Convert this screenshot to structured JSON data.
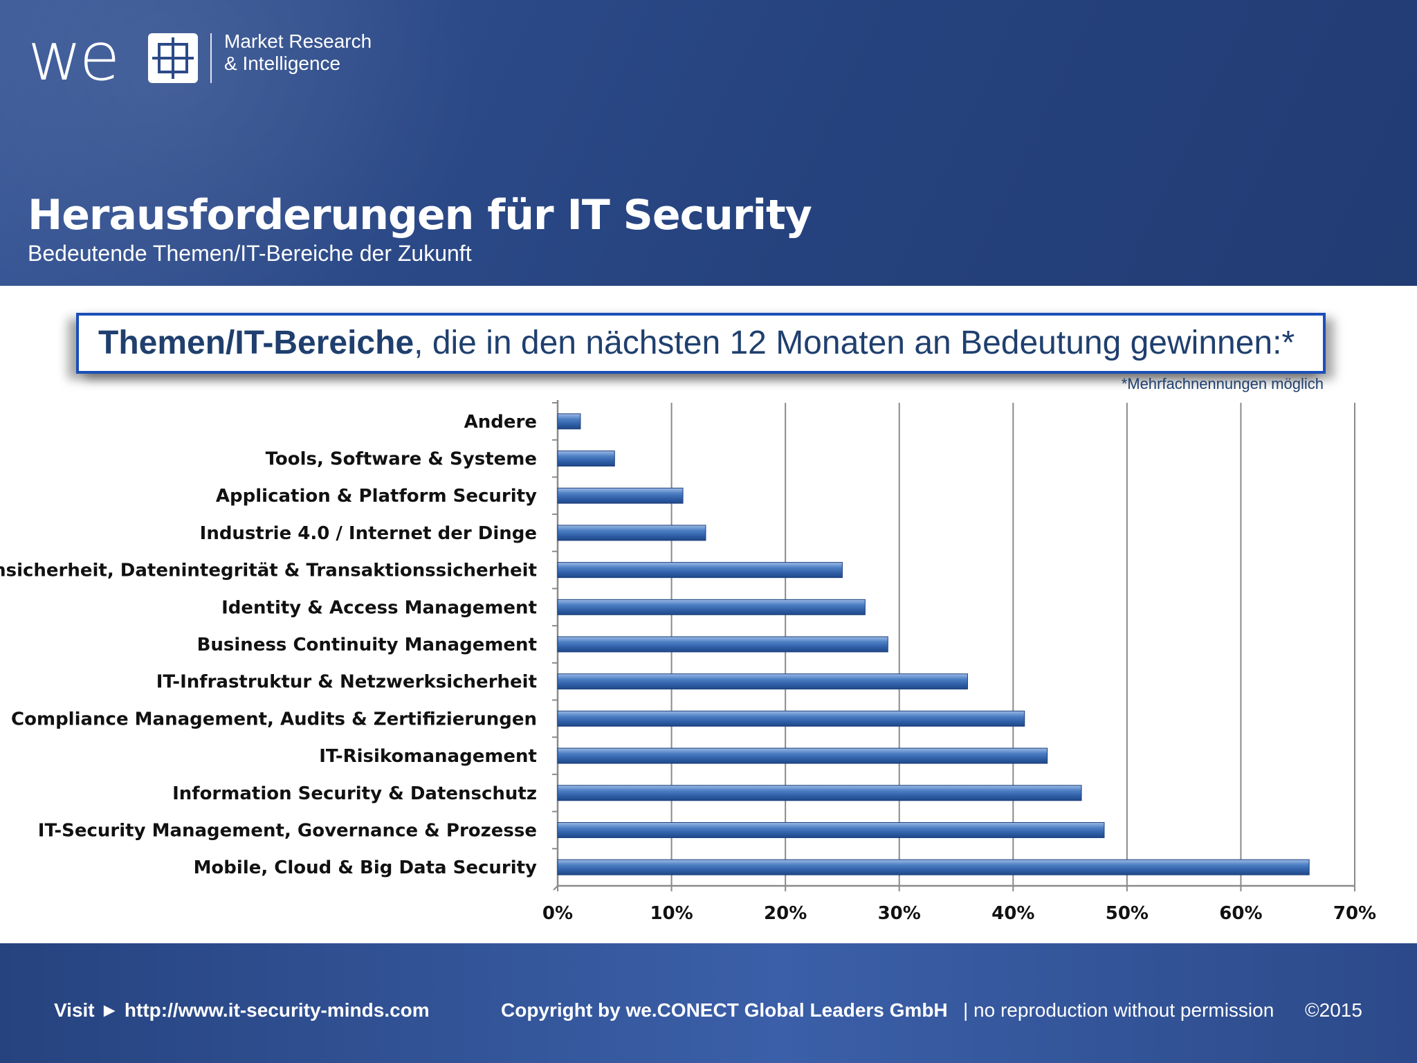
{
  "header": {
    "logo_word": "we",
    "logo_line1": "Market Research",
    "logo_line2": "& Intelligence",
    "title": "Herausforderungen für IT Security",
    "subtitle": "Bedeutende Themen/IT-Bereiche der Zukunft"
  },
  "question": {
    "bold": "Themen/IT-Bereiche",
    "rest": ", die in den nächsten 12 Monaten an Bedeutung gewinnen:*",
    "footnote": "*Mehrfachnennungen möglich"
  },
  "chart_data": {
    "type": "bar",
    "orientation": "horizontal",
    "categories": [
      "Andere",
      "Tools, Software & Systeme",
      "Application & Platform Security",
      "Industrie 4.0 / Internet der Dinge",
      "Datensicherheit, Datenintegrität & Transaktionssicherheit",
      "Identity & Access Management",
      "Business Continuity Management",
      "IT-Infrastruktur & Netzwerksicherheit",
      "Compliance Management, Audits & Zertifizierungen",
      "IT-Risikomanagement",
      "Information Security & Datenschutz",
      "IT-Security Management, Governance & Prozesse",
      "Mobile, Cloud & Big Data Security"
    ],
    "values": [
      2,
      5,
      11,
      13,
      25,
      27,
      29,
      36,
      41,
      43,
      46,
      48,
      66
    ],
    "xlim": [
      0,
      70
    ],
    "xticks": [
      "0%",
      "10%",
      "20%",
      "30%",
      "40%",
      "50%",
      "60%",
      "70%"
    ],
    "grid": "vertical",
    "bar_color": "#3a6fb8"
  },
  "footer": {
    "visit": "Visit ► http://www.it-security-minds.com",
    "copyright": "Copyright by we.CONECT Global Leaders GmbH",
    "norepro": "| no reproduction without permission",
    "year": "©2015"
  }
}
